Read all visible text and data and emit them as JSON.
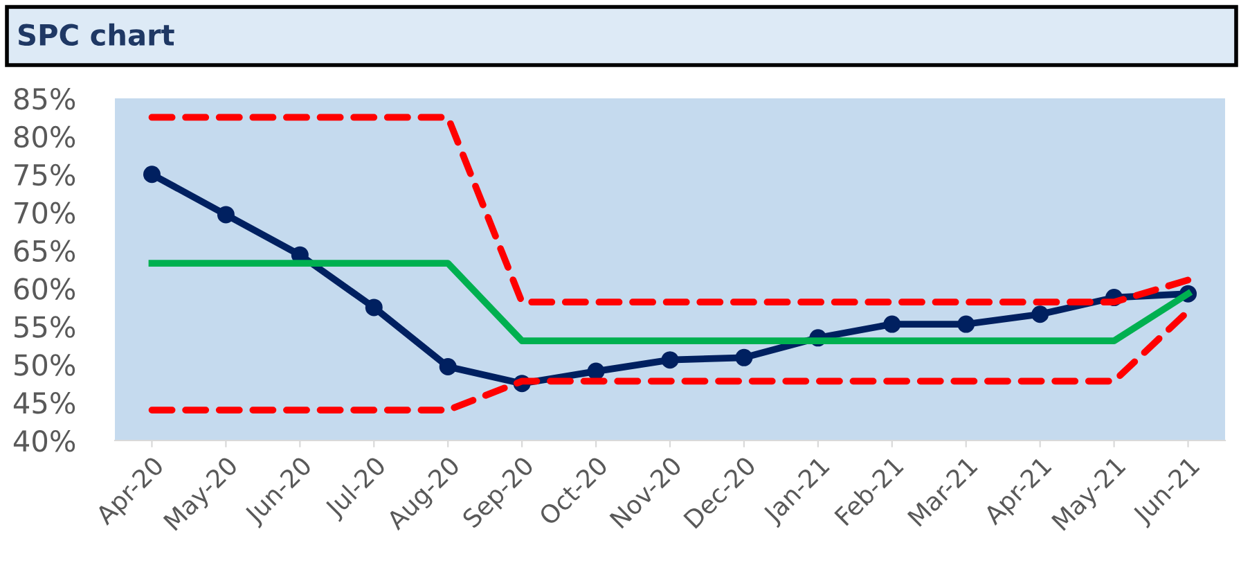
{
  "chart_data": {
    "type": "line",
    "title": "SPC chart",
    "categories": [
      "Apr-20",
      "May-20",
      "Jun-20",
      "Jul-20",
      "Aug-20",
      "Sep-20",
      "Oct-20",
      "Nov-20",
      "Dec-20",
      "Jan-21",
      "Feb-21",
      "Mar-21",
      "Apr-21",
      "May-21",
      "Jun-21"
    ],
    "series": [
      {
        "color": "#002060",
        "marker": "circle",
        "line_style": "solid",
        "values": [
          75.0,
          69.7,
          64.4,
          57.5,
          49.7,
          47.5,
          49.1,
          50.6,
          50.9,
          53.5,
          55.3,
          55.3,
          56.6,
          58.8,
          59.3
        ]
      },
      {
        "color": "#00b050",
        "marker": "none",
        "line_style": "solid",
        "values": [
          63.3,
          63.3,
          63.3,
          63.3,
          63.3,
          53.1,
          53.1,
          53.1,
          53.1,
          53.1,
          53.1,
          53.1,
          53.1,
          53.1,
          59.3
        ]
      },
      {
        "color": "#ff0000",
        "marker": "none",
        "line_style": "dashed",
        "values": [
          82.5,
          82.5,
          82.5,
          82.5,
          82.5,
          58.2,
          58.2,
          58.2,
          58.2,
          58.2,
          58.2,
          58.2,
          58.2,
          58.2,
          61.1
        ]
      },
      {
        "color": "#ff0000",
        "marker": "none",
        "line_style": "dashed",
        "values": [
          44.0,
          44.0,
          44.0,
          44.0,
          44.0,
          47.8,
          47.8,
          47.8,
          47.8,
          47.8,
          47.8,
          47.8,
          47.8,
          47.8,
          57.0
        ]
      }
    ],
    "ylim": [
      40,
      85
    ],
    "yticks": [
      {
        "value": 40,
        "label": "40%"
      },
      {
        "value": 45,
        "label": "45%"
      },
      {
        "value": 50,
        "label": "50%"
      },
      {
        "value": 55,
        "label": "55%"
      },
      {
        "value": 60,
        "label": "60%"
      },
      {
        "value": 65,
        "label": "65%"
      },
      {
        "value": 70,
        "label": "70%"
      },
      {
        "value": 75,
        "label": "75%"
      },
      {
        "value": 80,
        "label": "80%"
      },
      {
        "value": 85,
        "label": "85%"
      }
    ],
    "grid": false,
    "legend": false
  }
}
